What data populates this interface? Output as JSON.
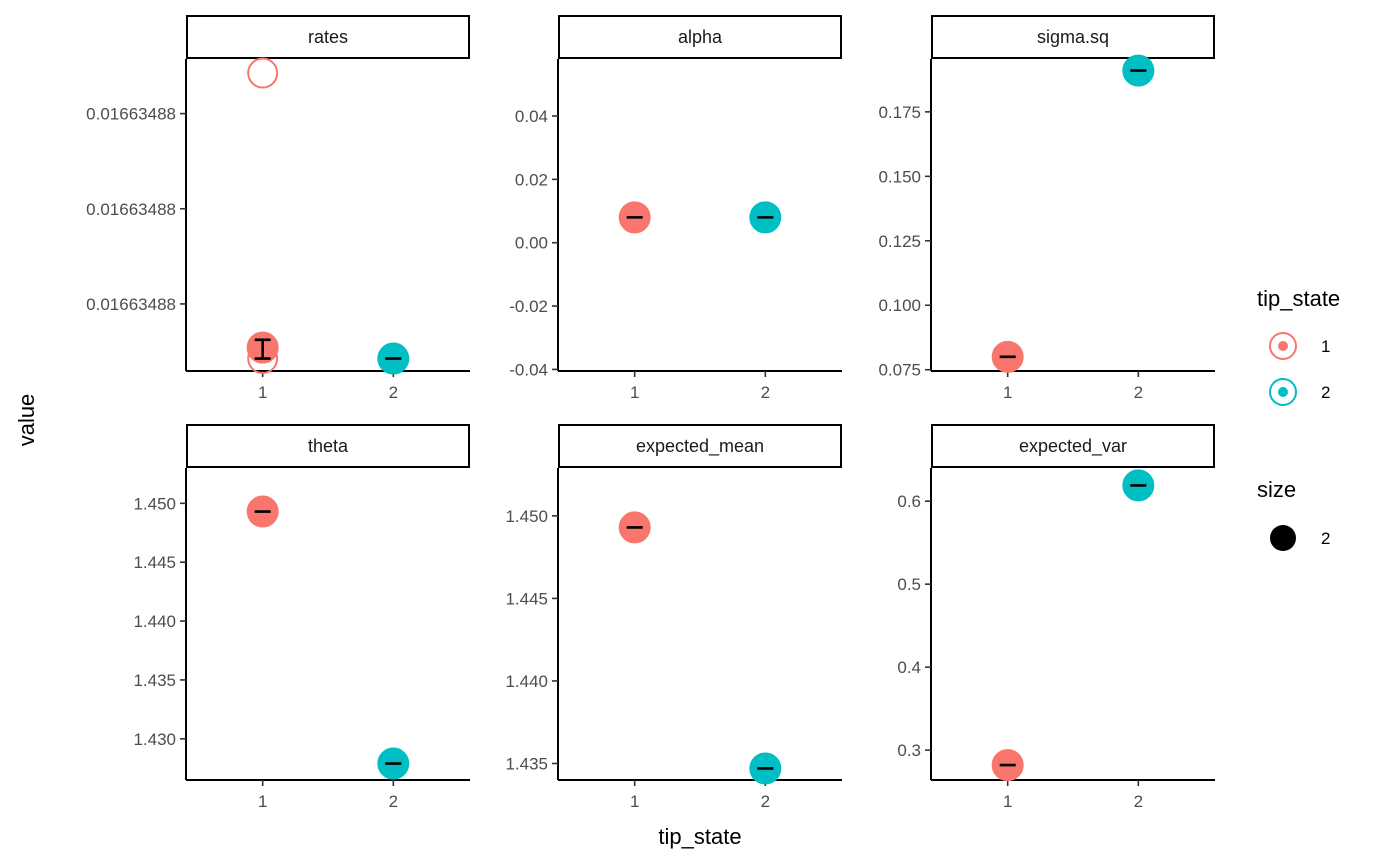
{
  "chart_data": {
    "type": "scatter",
    "layout": "facet-grid-2x3",
    "xlabel": "tip_state",
    "ylabel": "value",
    "x_categories": [
      "1",
      "2"
    ],
    "colors": {
      "1": "#F8766D",
      "2": "#00BFC4"
    },
    "legend": {
      "placement": "right",
      "color_title": "tip_state",
      "color_entries": [
        "1",
        "2"
      ],
      "size_title": "size",
      "size_entries": [
        "2"
      ]
    },
    "panels": [
      {
        "title": "rates",
        "ylim": [
          0,
          1
        ],
        "yticks": [
          0.825,
          0.52,
          0.215
        ],
        "ytick_labels": [
          "0.01663488",
          "0.01663488",
          "0.01663488"
        ],
        "points": [
          {
            "x": "1",
            "y": 0.955,
            "filled": false
          },
          {
            "x": "1",
            "y": 0.04,
            "filled": false
          },
          {
            "x": "1",
            "y": 0.075,
            "filled": true,
            "err_low": 0.04,
            "err_high": 0.1
          },
          {
            "x": "2",
            "y": 0.04,
            "filled": true,
            "err_low": 0.04,
            "err_high": 0.04
          }
        ]
      },
      {
        "title": "alpha",
        "ylim": [
          -0.0405,
          0.058
        ],
        "yticks": [
          -0.04,
          -0.02,
          0.0,
          0.02,
          0.04
        ],
        "ytick_labels": [
          "-0.04",
          "-0.02",
          "0.00",
          "0.02",
          "0.04"
        ],
        "points": [
          {
            "x": "1",
            "y": 0.008,
            "filled": true,
            "err_low": 0.008,
            "err_high": 0.008
          },
          {
            "x": "2",
            "y": 0.008,
            "filled": true,
            "err_low": 0.008,
            "err_high": 0.008
          }
        ]
      },
      {
        "title": "sigma.sq",
        "ylim": [
          0.0745,
          0.1955
        ],
        "yticks": [
          0.075,
          0.1,
          0.125,
          0.15,
          0.175
        ],
        "ytick_labels": [
          "0.075",
          "0.100",
          "0.125",
          "0.150",
          "0.175"
        ],
        "points": [
          {
            "x": "1",
            "y": 0.08,
            "filled": true,
            "err_low": 0.08,
            "err_high": 0.08
          },
          {
            "x": "2",
            "y": 0.191,
            "filled": true,
            "err_low": 0.191,
            "err_high": 0.191
          }
        ]
      },
      {
        "title": "theta",
        "ylim": [
          1.4265,
          1.453
        ],
        "yticks": [
          1.43,
          1.435,
          1.44,
          1.445,
          1.45
        ],
        "ytick_labels": [
          "1.430",
          "1.435",
          "1.440",
          "1.445",
          "1.450"
        ],
        "points": [
          {
            "x": "1",
            "y": 1.4493,
            "filled": true,
            "err_low": 1.4493,
            "err_high": 1.4493
          },
          {
            "x": "2",
            "y": 1.4279,
            "filled": true,
            "err_low": 1.4279,
            "err_high": 1.4279
          }
        ]
      },
      {
        "title": "expected_mean",
        "ylim": [
          1.434,
          1.4529
        ],
        "yticks": [
          1.435,
          1.44,
          1.445,
          1.45
        ],
        "ytick_labels": [
          "1.435",
          "1.440",
          "1.445",
          "1.450"
        ],
        "points": [
          {
            "x": "1",
            "y": 1.4493,
            "filled": true,
            "err_low": 1.4493,
            "err_high": 1.4493
          },
          {
            "x": "2",
            "y": 1.4347,
            "filled": true,
            "err_low": 1.4347,
            "err_high": 1.4347
          }
        ]
      },
      {
        "title": "expected_var",
        "ylim": [
          0.264,
          0.64
        ],
        "yticks": [
          0.3,
          0.4,
          0.5,
          0.6
        ],
        "ytick_labels": [
          "0.3",
          "0.4",
          "0.5",
          "0.6"
        ],
        "points": [
          {
            "x": "1",
            "y": 0.282,
            "filled": true,
            "err_low": 0.282,
            "err_high": 0.282
          },
          {
            "x": "2",
            "y": 0.619,
            "filled": true,
            "err_low": 0.619,
            "err_high": 0.619
          }
        ]
      }
    ]
  }
}
